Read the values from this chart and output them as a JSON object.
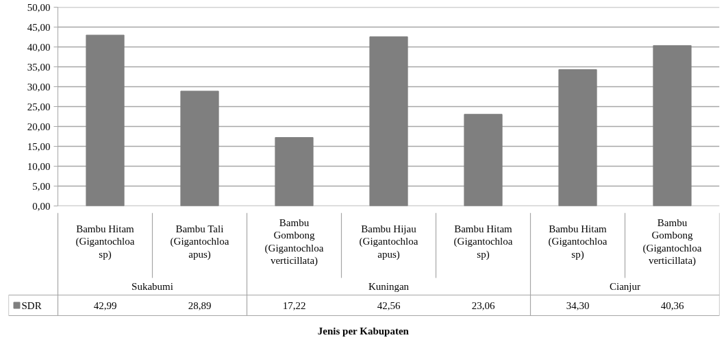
{
  "chart_data": {
    "type": "bar",
    "categories": [
      "Bambu Hitam (Gigantochloa sp)",
      "Bambu Tali (Gigantochloa apus)",
      "Bambu Gombong (Gigantochloa verticillata)",
      "Bambu Hijau (Gigantochloa apus)",
      "Bambu Hitam (Gigantochloa sp)",
      "Bambu Hitam (Gigantochloa sp)",
      "Bambu Gombong (Gigantochloa verticillata)"
    ],
    "annotations": [
      "Sukabumi",
      "Kuningan",
      "Cianjur",
      "Jenis per Kabupaten"
    ],
    "series": [
      {
        "name": "SDR",
        "color": "#7f7f7f",
        "values": [
          42.99,
          28.89,
          17.22,
          42.56,
          23.06,
          34.3,
          40.36
        ]
      }
    ],
    "value_labels": [
      "42,99",
      "28,89",
      "17,22",
      "42,56",
      "23,06",
      "34,30",
      "40,36"
    ],
    "ylim": [
      0,
      50
    ],
    "yticks": [
      {
        "value": 0,
        "label": "0,00"
      },
      {
        "value": 5,
        "label": "5,00"
      },
      {
        "value": 10,
        "label": "10,00"
      },
      {
        "value": 15,
        "label": "15,00"
      },
      {
        "value": 20,
        "label": "20,00"
      },
      {
        "value": 25,
        "label": "25,00"
      },
      {
        "value": 30,
        "label": "30,00"
      },
      {
        "value": 35,
        "label": "35,00"
      },
      {
        "value": 40,
        "label": "40,00"
      },
      {
        "value": 45,
        "label": "45,00"
      },
      {
        "value": 50,
        "label": "50,00"
      }
    ],
    "grid": "y",
    "legend": "bottom"
  }
}
